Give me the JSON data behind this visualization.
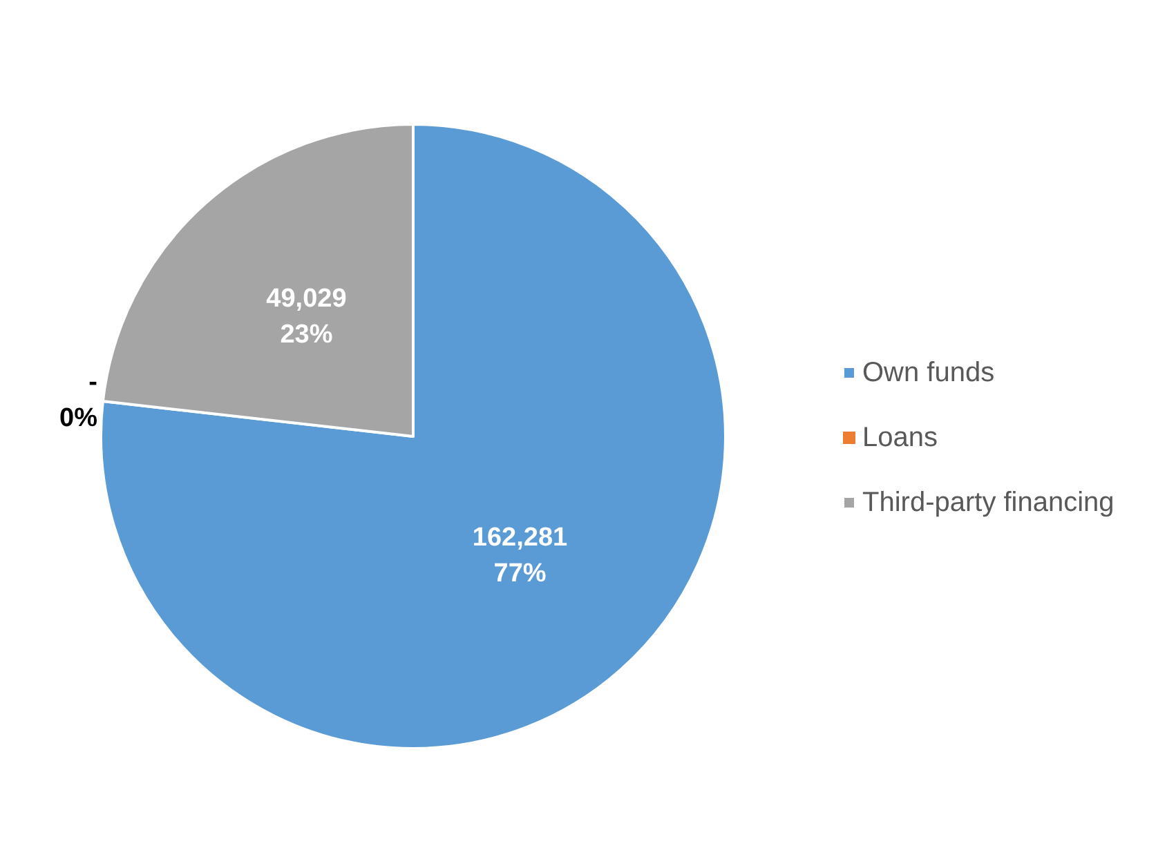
{
  "chart_data": {
    "type": "pie",
    "categories": [
      "Own funds",
      "Loans",
      "Third-party financing"
    ],
    "values": [
      162281,
      0,
      49029
    ],
    "colors": [
      "#5b9bd5",
      "#ed7d31",
      "#a5a5a5"
    ],
    "value_labels": [
      "162,281\n77%",
      "-\n0%",
      "49,029\n23%"
    ],
    "legend": "right"
  }
}
